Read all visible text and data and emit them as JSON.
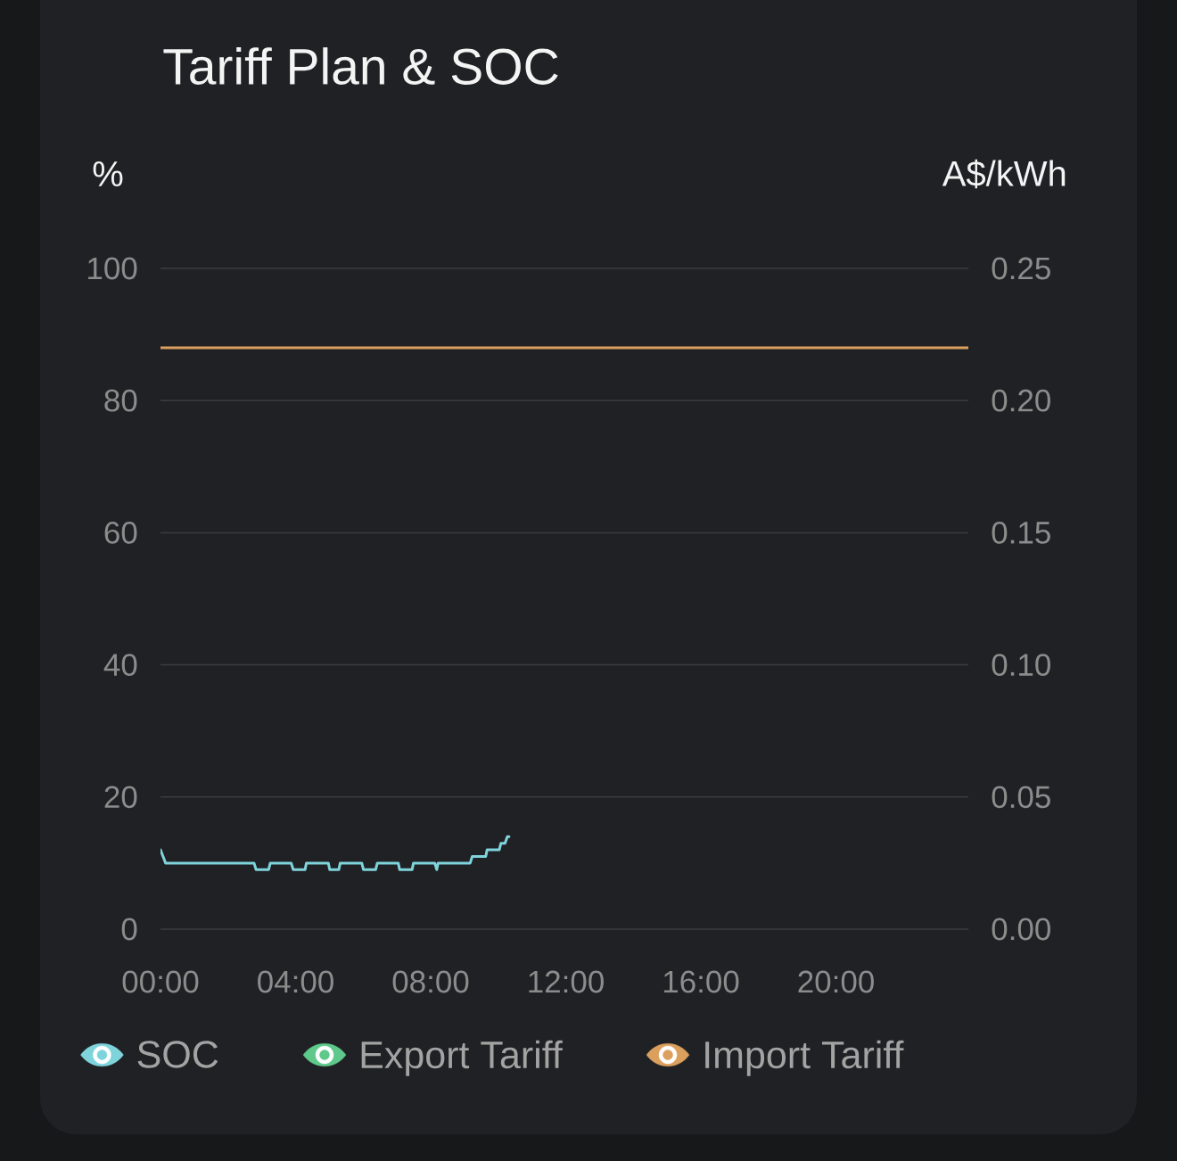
{
  "chart_data": {
    "type": "line",
    "title": "Tariff Plan & SOC",
    "ylabel": "%",
    "y2label": "A$/kWh",
    "xlim": [
      0,
      23.92
    ],
    "xticks": [
      {
        "value": 0,
        "label": "00:00"
      },
      {
        "value": 4,
        "label": "04:00"
      },
      {
        "value": 8,
        "label": "08:00"
      },
      {
        "value": 12,
        "label": "12:00"
      },
      {
        "value": 16,
        "label": "16:00"
      },
      {
        "value": 20,
        "label": "20:00"
      }
    ],
    "ylim": [
      0,
      100
    ],
    "yticks": [
      0,
      20,
      40,
      60,
      80,
      100
    ],
    "y2lim": [
      0,
      0.25
    ],
    "y2ticks": [
      {
        "value": 0,
        "label": "0.00"
      },
      {
        "value": 0.05,
        "label": "0.05"
      },
      {
        "value": 0.1,
        "label": "0.10"
      },
      {
        "value": 0.15,
        "label": "0.15"
      },
      {
        "value": 0.2,
        "label": "0.20"
      },
      {
        "value": 0.25,
        "label": "0.25"
      }
    ],
    "grid": "y",
    "legend": "bottom",
    "series": [
      {
        "name": "SOC",
        "color": "#7fd4dc",
        "x": [
          0,
          0.15,
          2.77,
          2.83,
          3.2,
          3.25,
          3.87,
          3.93,
          4.28,
          4.32,
          4.97,
          5.01,
          5.28,
          5.32,
          5.96,
          6.01,
          6.37,
          6.42,
          7.04,
          7.08,
          7.45,
          7.49,
          8.12,
          8.18,
          8.22,
          9.17,
          9.23,
          9.63,
          9.67,
          10.03,
          10.08,
          10.2,
          10.27,
          10.32
        ],
        "values": [
          12,
          10,
          10,
          9,
          9,
          10,
          10,
          9,
          9,
          10,
          10,
          9,
          9,
          10,
          10,
          9,
          9,
          10,
          10,
          9,
          9,
          10,
          10,
          9,
          10,
          10,
          11,
          11,
          12,
          12,
          13,
          13,
          14,
          14
        ]
      },
      {
        "name": "Export Tariff",
        "color": "#5ec98a",
        "axis": "y2"
      },
      {
        "name": "Import Tariff",
        "color": "#dba05e",
        "axis": "y2",
        "x": [
          0,
          23.92
        ],
        "values": [
          0.22,
          0.22
        ]
      }
    ]
  }
}
